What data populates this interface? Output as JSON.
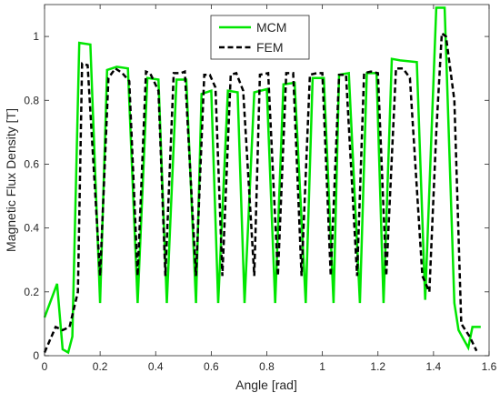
{
  "chart_data": {
    "type": "line",
    "title": "",
    "xlabel": "Angle [rad]",
    "ylabel": "Magnetic Flux Density [T]",
    "xlim": [
      0,
      1.6
    ],
    "ylim": [
      0,
      1.1
    ],
    "xticks": [
      0,
      0.2,
      0.4,
      0.6,
      0.8,
      1,
      1.2,
      1.4,
      1.6
    ],
    "xtick_labels": [
      "0",
      "0.2",
      "0.4",
      "0.6",
      "0.8",
      "1",
      "1.2",
      "1.4",
      "1.6"
    ],
    "yticks": [
      0,
      0.2,
      0.4,
      0.6,
      0.8,
      1
    ],
    "ytick_labels": [
      "0",
      "0.2",
      "0.4",
      "0.6",
      "0.8",
      "1"
    ],
    "grid": false,
    "legend_position": "top-center",
    "series": [
      {
        "name": "MCM",
        "color": "#00e600",
        "style": "solid",
        "x": [
          0,
          0.045,
          0.065,
          0.085,
          0.1,
          0.125,
          0.165,
          0.2,
          0.225,
          0.26,
          0.3,
          0.335,
          0.37,
          0.41,
          0.44,
          0.475,
          0.51,
          0.545,
          0.565,
          0.6,
          0.625,
          0.66,
          0.695,
          0.72,
          0.755,
          0.8,
          0.83,
          0.86,
          0.9,
          0.94,
          0.965,
          1.005,
          1.04,
          1.06,
          1.095,
          1.135,
          1.16,
          1.195,
          1.22,
          1.25,
          1.28,
          1.34,
          1.37,
          1.41,
          1.44,
          1.475,
          1.49,
          1.525,
          1.54,
          1.57
        ],
        "values": [
          0.12,
          0.225,
          0.02,
          0.01,
          0.06,
          0.98,
          0.975,
          0.165,
          0.895,
          0.905,
          0.9,
          0.165,
          0.87,
          0.865,
          0.165,
          0.865,
          0.865,
          0.165,
          0.82,
          0.83,
          0.165,
          0.83,
          0.825,
          0.165,
          0.825,
          0.835,
          0.165,
          0.85,
          0.855,
          0.165,
          0.87,
          0.87,
          0.165,
          0.88,
          0.885,
          0.165,
          0.885,
          0.885,
          0.165,
          0.93,
          0.925,
          0.92,
          0.175,
          1.09,
          1.09,
          0.165,
          0.08,
          0.025,
          0.09,
          0.09
        ]
      },
      {
        "name": "FEM",
        "color": "#000000",
        "style": "dashed",
        "x": [
          0,
          0.04,
          0.065,
          0.09,
          0.12,
          0.135,
          0.155,
          0.2,
          0.23,
          0.255,
          0.28,
          0.305,
          0.335,
          0.365,
          0.38,
          0.41,
          0.435,
          0.465,
          0.49,
          0.505,
          0.545,
          0.575,
          0.595,
          0.615,
          0.64,
          0.67,
          0.69,
          0.715,
          0.755,
          0.775,
          0.805,
          0.84,
          0.87,
          0.895,
          0.925,
          0.955,
          0.98,
          1.0,
          1.03,
          1.06,
          1.085,
          1.125,
          1.15,
          1.175,
          1.2,
          1.23,
          1.265,
          1.29,
          1.315,
          1.36,
          1.385,
          1.41,
          1.43,
          1.445,
          1.46,
          1.475,
          1.5,
          1.53,
          1.555
        ],
        "values": [
          0.01,
          0.09,
          0.08,
          0.09,
          0.2,
          0.915,
          0.91,
          0.25,
          0.87,
          0.9,
          0.885,
          0.86,
          0.25,
          0.89,
          0.885,
          0.83,
          0.25,
          0.885,
          0.885,
          0.89,
          0.25,
          0.88,
          0.88,
          0.84,
          0.25,
          0.88,
          0.885,
          0.83,
          0.25,
          0.88,
          0.885,
          0.25,
          0.885,
          0.885,
          0.25,
          0.88,
          0.885,
          0.885,
          0.25,
          0.88,
          0.88,
          0.25,
          0.885,
          0.89,
          0.885,
          0.25,
          0.9,
          0.9,
          0.87,
          0.25,
          0.2,
          0.7,
          1.01,
          1.0,
          0.9,
          0.8,
          0.1,
          0.06,
          0.015
        ]
      }
    ]
  }
}
